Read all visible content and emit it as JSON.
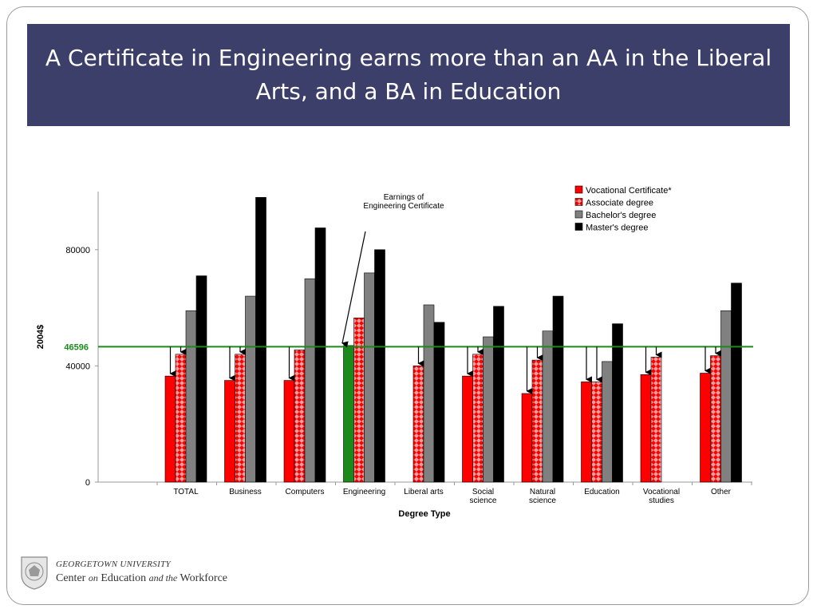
{
  "slide": {
    "title": "A Certificate in Engineering earns more than an AA in the Liberal Arts, and a BA in Education"
  },
  "logo": {
    "line1": "GEORGETOWN UNIVERSITY",
    "line2_a": "Center",
    "line2_b": "on",
    "line2_c": "Education",
    "line2_d": "and the",
    "line2_e": "Workforce"
  },
  "colors": {
    "vocational": "#ff0000",
    "associate_bg": "#e8a0a0",
    "associate_pattern": "#ff0000",
    "bachelor": "#808080",
    "master": "#000000",
    "engineering_certificate": "#1a8a1a",
    "reference_line": "#1a8a1a",
    "title_bar": "#3d3f6b"
  },
  "chart_data": {
    "type": "bar",
    "title": "",
    "xlabel": "Degree Type",
    "ylabel": "2004$",
    "ylim": [
      0,
      100000
    ],
    "y_ticks": [
      0,
      40000,
      80000
    ],
    "grid": false,
    "legend_position": "top-right",
    "categories": [
      [
        "TOTAL"
      ],
      [
        "Business"
      ],
      [
        "Computers"
      ],
      [
        "Engineering"
      ],
      [
        "Liberal arts"
      ],
      [
        "Social",
        "science"
      ],
      [
        "Natural",
        "science"
      ],
      [
        "Education"
      ],
      [
        "Vocational",
        "studies"
      ],
      [
        "Other"
      ]
    ],
    "series": [
      {
        "name": "Vocational Certificate*",
        "values": [
          36500,
          35000,
          35000,
          47000,
          null,
          36500,
          30500,
          34500,
          37000,
          37500
        ]
      },
      {
        "name": "Associate degree",
        "values": [
          44000,
          44000,
          45500,
          56500,
          40000,
          44000,
          42000,
          34500,
          43000,
          43500
        ]
      },
      {
        "name": "Bachelor's degree",
        "values": [
          59000,
          64000,
          70000,
          72000,
          61000,
          50000,
          52000,
          41500,
          null,
          59000
        ]
      },
      {
        "name": "Master's degree",
        "values": [
          71000,
          98000,
          87500,
          80000,
          55000,
          60500,
          64000,
          54500,
          null,
          68500
        ]
      }
    ],
    "reference_line": {
      "value": 46596,
      "label": "46596"
    },
    "annotation": {
      "lines": [
        "Earnings of",
        "Engineering Certificate"
      ]
    }
  }
}
